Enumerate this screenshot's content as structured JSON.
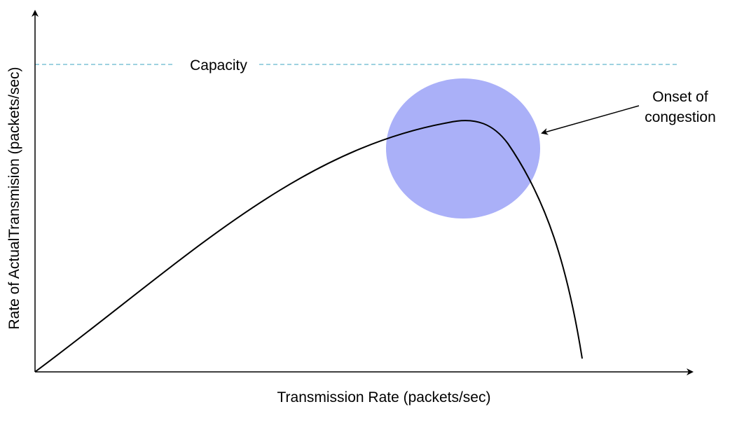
{
  "diagram": {
    "x_axis_label": "Transmission Rate (packets/sec)",
    "y_axis_label": "Rate of ActualTransmision (packets/sec)",
    "capacity_label": "Capacity",
    "onset_label_line1": "Onset of",
    "onset_label_line2": "congestion"
  },
  "colors": {
    "axis": "#000000",
    "curve": "#000000",
    "capacity_line": "#7ec3d6",
    "congestion_region": "#aab0f8",
    "background": "#ffffff"
  }
}
